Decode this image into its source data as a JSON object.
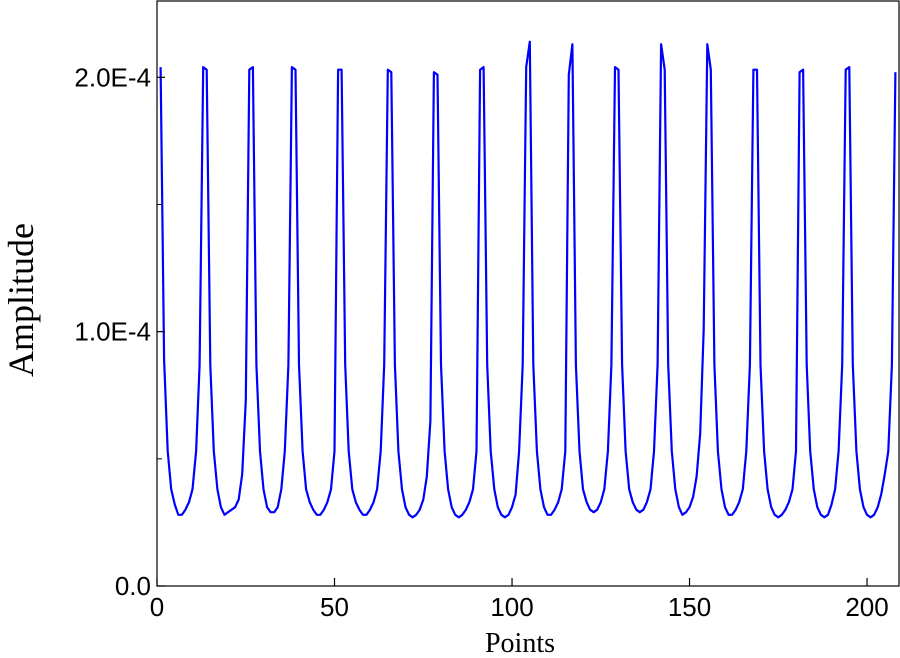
{
  "chart_data": {
    "type": "line",
    "title": "",
    "xlabel": "Points",
    "ylabel": "Amplitude",
    "xlim": [
      0,
      209
    ],
    "ylim": [
      0,
      0.00023
    ],
    "grid": false,
    "x_ticks": [
      0,
      50,
      100,
      150,
      200
    ],
    "x_tick_labels": [
      "0",
      "50",
      "100",
      "150",
      "200"
    ],
    "y_ticks": [
      0,
      0.0001,
      0.0002
    ],
    "y_tick_labels": [
      "0.0",
      "1.0E-4",
      "2.0E-4"
    ],
    "y_minor_ticks": [
      5e-05,
      0.00015
    ],
    "colors": {
      "line": "#0000ff",
      "axes": "#000000"
    },
    "series": [
      {
        "x": [
          1,
          2,
          3,
          4,
          5,
          6,
          7,
          8,
          9,
          10,
          11,
          12,
          13,
          14,
          15,
          16,
          17,
          18,
          19,
          20,
          21,
          22,
          23,
          24,
          25,
          26,
          27,
          28,
          29,
          30,
          31,
          32,
          33,
          34,
          35,
          36,
          37,
          38,
          39,
          40,
          41,
          42,
          43,
          44,
          45,
          46,
          47,
          48,
          49,
          50,
          51,
          52,
          53,
          54,
          55,
          56,
          57,
          58,
          59,
          60,
          61,
          62,
          63,
          64,
          65,
          66,
          67,
          68,
          69,
          70,
          71,
          72,
          73,
          74,
          75,
          76,
          77,
          78,
          79,
          80,
          81,
          82,
          83,
          84,
          85,
          86,
          87,
          88,
          89,
          90,
          91,
          92,
          93,
          94,
          95,
          96,
          97,
          98,
          99,
          100,
          101,
          102,
          103,
          104,
          105,
          106,
          107,
          108,
          109,
          110,
          111,
          112,
          113,
          114,
          115,
          116,
          117,
          118,
          119,
          120,
          121,
          122,
          123,
          124,
          125,
          126,
          127,
          128,
          129,
          130,
          131,
          132,
          133,
          134,
          135,
          136,
          137,
          138,
          139,
          140,
          141,
          142,
          143,
          144,
          145,
          146,
          147,
          148,
          149,
          150,
          151,
          152,
          153,
          154,
          155,
          156,
          157,
          158,
          159,
          160,
          161,
          162,
          163,
          164,
          165,
          166,
          167,
          168,
          169,
          170,
          171,
          172,
          173,
          174,
          175,
          176,
          177,
          178,
          179,
          180,
          181,
          182,
          183,
          184,
          185,
          186,
          187,
          188,
          189,
          190,
          191,
          192,
          193,
          194,
          195,
          196,
          197,
          198,
          199,
          200,
          201,
          202,
          203,
          204,
          205,
          206,
          207,
          208
        ],
        "y": [
          0.000204,
          8.9e-05,
          5.3e-05,
          3.8e-05,
          3.2e-05,
          2.8e-05,
          2.8e-05,
          3e-05,
          3.3e-05,
          3.8e-05,
          5.3e-05,
          8.7e-05,
          0.000204,
          0.000203,
          8.7e-05,
          5.3e-05,
          3.8e-05,
          3.1e-05,
          2.8e-05,
          2.9e-05,
          3e-05,
          3.1e-05,
          3.4e-05,
          4.4e-05,
          7.3e-05,
          0.000203,
          0.000204,
          8.7e-05,
          5.3e-05,
          3.8e-05,
          3.1e-05,
          2.9e-05,
          2.9e-05,
          3.1e-05,
          3.8e-05,
          5.3e-05,
          8.7e-05,
          0.000204,
          0.000203,
          8.7e-05,
          5.3e-05,
          3.8e-05,
          3.3e-05,
          3e-05,
          2.8e-05,
          2.8e-05,
          3e-05,
          3.3e-05,
          3.8e-05,
          5.3e-05,
          0.000203,
          0.000203,
          8.7e-05,
          5.3e-05,
          3.8e-05,
          3.3e-05,
          3e-05,
          2.8e-05,
          2.8e-05,
          3e-05,
          3.3e-05,
          3.8e-05,
          5.3e-05,
          8.7e-05,
          0.000203,
          0.000202,
          8.7e-05,
          5.3e-05,
          3.8e-05,
          3.1e-05,
          2.8e-05,
          2.7e-05,
          2.8e-05,
          3e-05,
          3.4e-05,
          4.3e-05,
          6.5e-05,
          0.000202,
          0.000201,
          8.7e-05,
          5.3e-05,
          3.8e-05,
          3.1e-05,
          2.8e-05,
          2.7e-05,
          2.8e-05,
          3e-05,
          3.3e-05,
          3.8e-05,
          5.3e-05,
          0.000203,
          0.000204,
          8.7e-05,
          5.3e-05,
          3.8e-05,
          3.1e-05,
          2.8e-05,
          2.7e-05,
          2.8e-05,
          3.1e-05,
          3.6e-05,
          5.3e-05,
          8.7e-05,
          0.000204,
          0.000214,
          8.7e-05,
          5.3e-05,
          3.8e-05,
          3.1e-05,
          2.8e-05,
          2.8e-05,
          3e-05,
          3.3e-05,
          3.8e-05,
          5.3e-05,
          0.000201,
          0.000213,
          8.7e-05,
          5.3e-05,
          3.8e-05,
          3.3e-05,
          3e-05,
          2.9e-05,
          3e-05,
          3.3e-05,
          3.8e-05,
          5.3e-05,
          8.7e-05,
          0.000204,
          0.000203,
          8.7e-05,
          5.3e-05,
          3.8e-05,
          3.3e-05,
          3e-05,
          2.9e-05,
          3e-05,
          3.3e-05,
          3.8e-05,
          5.3e-05,
          8.7e-05,
          0.000213,
          0.000203,
          8.7e-05,
          5.3e-05,
          3.8e-05,
          3.1e-05,
          2.8e-05,
          2.9e-05,
          3.1e-05,
          3.5e-05,
          4.3e-05,
          6e-05,
          0.000101,
          0.000213,
          0.000203,
          8.7e-05,
          5.3e-05,
          3.8e-05,
          3.1e-05,
          2.8e-05,
          2.8e-05,
          3e-05,
          3.3e-05,
          3.8e-05,
          5.3e-05,
          8.7e-05,
          0.000203,
          0.000203,
          8.7e-05,
          5.3e-05,
          3.8e-05,
          3.1e-05,
          2.8e-05,
          2.7e-05,
          2.8e-05,
          3e-05,
          3.3e-05,
          3.8e-05,
          5.3e-05,
          0.000202,
          0.000203,
          8.7e-05,
          5.3e-05,
          3.8e-05,
          3.1e-05,
          2.8e-05,
          2.7e-05,
          2.8e-05,
          3.2e-05,
          3.8e-05,
          5.3e-05,
          8.7e-05,
          0.000203,
          0.000204,
          8.7e-05,
          5.3e-05,
          3.8e-05,
          3.1e-05,
          2.8e-05,
          2.7e-05,
          2.8e-05,
          3.1e-05,
          3.6e-05,
          4.4e-05,
          5.3e-05,
          8.7e-05,
          0.000202
        ]
      }
    ]
  }
}
